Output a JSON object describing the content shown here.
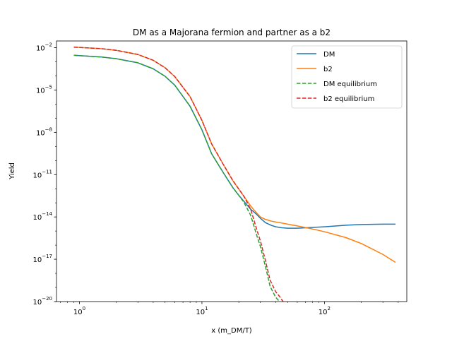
{
  "chart_data": {
    "type": "line",
    "title": "DM as a Majorana fermion and partner as a b2",
    "xlabel": "x (m_DM/T)",
    "ylabel": "Yield",
    "xscale": "log",
    "yscale": "log",
    "xlim": [
      0.65,
      470
    ],
    "ylim": [
      1e-20,
      0.03
    ],
    "grid": false,
    "legend_position": "top-right",
    "x_ticks": [
      {
        "value": 1,
        "mantissa": "10",
        "exponent": "0"
      },
      {
        "value": 10,
        "mantissa": "10",
        "exponent": "1"
      },
      {
        "value": 100,
        "mantissa": "10",
        "exponent": "2"
      }
    ],
    "y_ticks": [
      {
        "value": 0.01,
        "mantissa": "10",
        "exponent": "−2"
      },
      {
        "value": 1e-05,
        "mantissa": "10",
        "exponent": "−5"
      },
      {
        "value": 1e-08,
        "mantissa": "10",
        "exponent": "−8"
      },
      {
        "value": 1e-11,
        "mantissa": "10",
        "exponent": "−11"
      },
      {
        "value": 1e-14,
        "mantissa": "10",
        "exponent": "−14"
      },
      {
        "value": 1e-17,
        "mantissa": "10",
        "exponent": "−17"
      },
      {
        "value": 1e-20,
        "mantissa": "10",
        "exponent": "−20"
      }
    ],
    "series": [
      {
        "name": "DM",
        "color": "#1f77b4",
        "dash": "solid",
        "x": [
          0.9,
          1.5,
          2,
          3,
          4,
          5,
          6,
          8,
          10,
          12,
          15,
          18,
          20,
          22,
          25,
          27,
          28,
          30,
          33,
          37,
          40,
          45,
          50,
          60,
          80,
          100,
          150,
          200,
          300,
          380
        ],
        "y": [
          0.0029,
          0.0022,
          0.00165,
          0.00085,
          0.00032,
          9.4e-05,
          2.2e-05,
          7e-07,
          1.5e-08,
          3e-10,
          1.3e-11,
          1.1e-12,
          3.4e-13,
          1.3e-13,
          3.5e-14,
          2e-14,
          1.5e-14,
          8e-15,
          3.9e-15,
          2.5e-15,
          2e-15,
          1.7e-15,
          1.6e-15,
          1.6e-15,
          1.8e-15,
          2e-15,
          2.6e-15,
          2.9e-15,
          3.1e-15,
          3.1e-15
        ]
      },
      {
        "name": "b2",
        "color": "#ff7f0e",
        "dash": "solid",
        "x": [
          0.9,
          1.5,
          2,
          3,
          4,
          5,
          6,
          8,
          10,
          12,
          15,
          18,
          20,
          22,
          25,
          27,
          28,
          30,
          33,
          37,
          40,
          45,
          50,
          60,
          80,
          100,
          150,
          200,
          300,
          380
        ],
        "y": [
          0.011,
          0.0086,
          0.0065,
          0.0033,
          0.00128,
          0.00038,
          9e-05,
          3.4e-06,
          7e-08,
          1.5e-09,
          5e-11,
          3.4e-12,
          9.5e-13,
          2.9e-13,
          6e-14,
          2.7e-14,
          1.9e-14,
          9.9e-15,
          6.7e-15,
          5e-15,
          4.4e-15,
          3.7e-15,
          3.1e-15,
          2.3e-15,
          1.4e-15,
          9e-16,
          3.4e-16,
          1.3e-16,
          2.2e-17,
          6e-18
        ]
      },
      {
        "name": "DM equilibrium",
        "color": "#2ca02c",
        "dash": "dashed",
        "x": [
          0.9,
          1.5,
          2,
          3,
          4,
          5,
          6,
          8,
          10,
          12,
          15,
          18,
          20,
          22,
          25,
          28,
          30,
          33,
          36,
          40,
          43,
          46,
          47
        ],
        "y": [
          0.0029,
          0.0022,
          0.00165,
          0.00085,
          0.00032,
          9.4e-05,
          2.2e-05,
          7e-07,
          1.5e-08,
          3e-10,
          1.3e-11,
          1.1e-12,
          3.4e-13,
          1.1e-13,
          1.3e-14,
          5e-16,
          8e-17,
          3e-18,
          1.2e-19,
          2e-20,
          1e-20,
          4e-21,
          2.5e-21
        ]
      },
      {
        "name": "b2 equilibrium",
        "color": "#d62728",
        "dash": "dashed",
        "x": [
          0.9,
          1.5,
          2,
          3,
          4,
          5,
          6,
          8,
          10,
          12,
          15,
          18,
          20,
          22,
          25,
          28,
          30,
          33,
          36,
          40,
          43,
          46,
          47
        ],
        "y": [
          0.011,
          0.0086,
          0.0065,
          0.0033,
          0.00128,
          0.00038,
          9e-05,
          3.4e-06,
          7e-08,
          1.5e-09,
          5e-11,
          3.4e-12,
          9.5e-13,
          2.9e-13,
          3.5e-14,
          1.3e-15,
          2e-16,
          8e-18,
          3.3e-19,
          5e-20,
          2.3e-20,
          1e-20,
          7e-21
        ]
      }
    ]
  }
}
